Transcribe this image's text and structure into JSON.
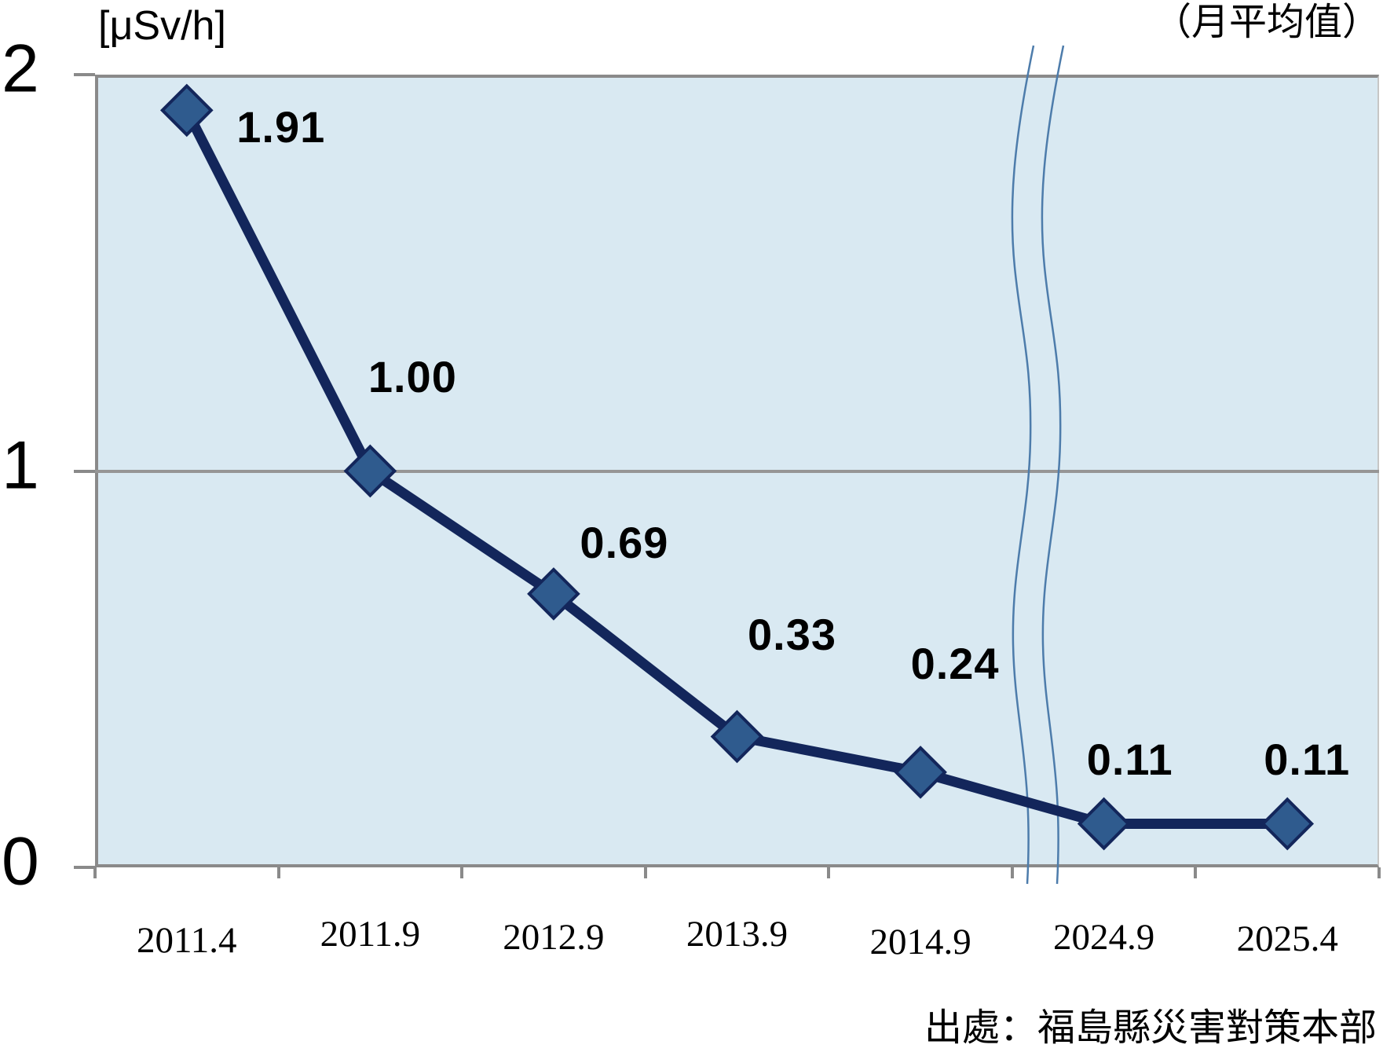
{
  "chart_data": {
    "type": "line",
    "unit_label": "[μSv/h]",
    "subtitle": "（月平均值）",
    "source": "出處：福島縣災害對策本部",
    "categories": [
      "2011.4",
      "2011.9",
      "2012.9",
      "2013.9",
      "2014.9",
      "2024.9",
      "2025.4"
    ],
    "values": [
      1.91,
      1.0,
      0.69,
      0.33,
      0.24,
      0.11,
      0.11
    ],
    "value_labels": [
      "1.91",
      "1.00",
      "0.69",
      "0.33",
      "0.24",
      "0.11",
      "0.11"
    ],
    "yticks": [
      {
        "value": 0,
        "label": "0"
      },
      {
        "value": 1,
        "label": "1"
      },
      {
        "value": 2,
        "label": "2"
      }
    ],
    "ylim": [
      0,
      2
    ],
    "grid": "horizontal gridline at y=1",
    "legend": "none",
    "axis_break": {
      "between": [
        "2014.9",
        "2024.9"
      ]
    },
    "colors": {
      "line": "#13265b",
      "marker_fill": "#2f5b8e",
      "marker_stroke": "#13265b",
      "plot_bg": "#d9e9f2",
      "axis": "#8a8a8a",
      "gridline": "#969696",
      "break_line": "#4d7cab",
      "text": "#000000"
    }
  }
}
